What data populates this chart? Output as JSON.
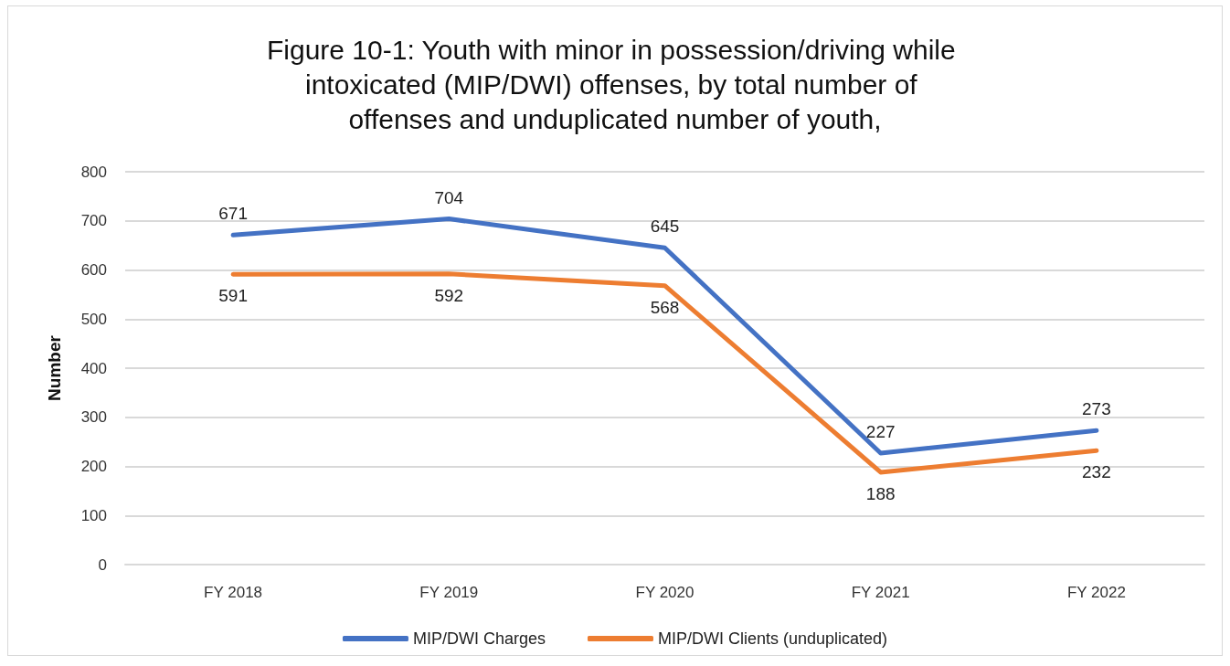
{
  "chart_data": {
    "type": "line",
    "title": "Figure 10-1: Youth with minor in possession/driving while intoxicated (MIP/DWI) offenses, by total number of offenses and unduplicated number of youth,",
    "ylabel": "Number",
    "categories": [
      "FY 2018",
      "FY 2019",
      "FY 2020",
      "FY 2021",
      "FY 2022"
    ],
    "series": [
      {
        "name": "MIP/DWI Charges",
        "color": "#4472c4",
        "values": [
          671,
          704,
          645,
          227,
          273
        ]
      },
      {
        "name": "MIP/DWI Clients (unduplicated)",
        "color": "#ed7d31",
        "values": [
          591,
          592,
          568,
          188,
          232
        ]
      }
    ],
    "ylim": [
      0,
      800
    ],
    "yticks": [
      0,
      100,
      200,
      300,
      400,
      500,
      600,
      700,
      800
    ],
    "grid": "y",
    "legend": "bottom",
    "marker": "none",
    "line_style": "solid",
    "data_labels": true
  }
}
